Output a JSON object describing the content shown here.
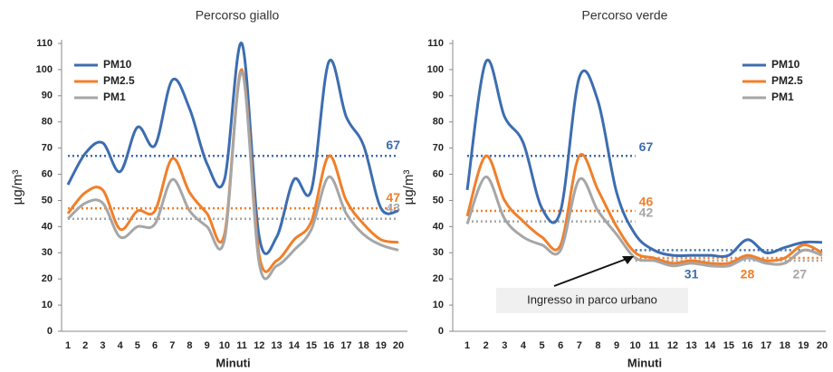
{
  "chart_data": [
    {
      "type": "line",
      "title": "Percorso giallo",
      "x_label": "Minuti",
      "y_label": "µg/m³",
      "categories": [
        "1",
        "2",
        "3",
        "4",
        "5",
        "6",
        "7",
        "8",
        "9",
        "10",
        "11",
        "12",
        "13",
        "14",
        "15",
        "16",
        "17",
        "18",
        "19",
        "20"
      ],
      "ylim": [
        0,
        110
      ],
      "yticks": [
        0,
        10,
        20,
        30,
        40,
        50,
        60,
        70,
        80,
        90,
        100,
        110
      ],
      "legend": "upper left",
      "series": [
        {
          "name": "PM10",
          "color": "#3c6db0",
          "values": [
            56,
            68,
            72,
            61,
            78,
            71,
            96,
            85,
            64,
            58,
            110,
            36,
            36,
            58,
            54,
            103,
            82,
            71,
            47,
            46
          ]
        },
        {
          "name": "PM2.5",
          "color": "#f07f2a",
          "values": [
            45,
            53,
            54,
            39,
            46,
            46,
            66,
            53,
            45,
            37,
            100,
            29,
            27,
            35,
            42,
            67,
            50,
            41,
            35,
            34
          ]
        },
        {
          "name": "PM1",
          "color": "#a6a6a6",
          "values": [
            43,
            49,
            49,
            36,
            40,
            41,
            58,
            46,
            40,
            35,
            99,
            26,
            25,
            31,
            39,
            59,
            45,
            37,
            33,
            31
          ]
        }
      ],
      "averages": [
        {
          "value": 67,
          "color": "#3c6db0",
          "x": [
            1,
            20
          ]
        },
        {
          "value": 47,
          "color": "#f07f2a",
          "x": [
            1,
            20
          ]
        },
        {
          "value": 43,
          "color": "#a6a6a6",
          "x": [
            1,
            20
          ]
        }
      ]
    },
    {
      "type": "line",
      "title": "Percorso verde",
      "x_label": "Minuti",
      "y_label": "µg/m³",
      "categories": [
        "1",
        "2",
        "3",
        "4",
        "5",
        "6",
        "7",
        "8",
        "9",
        "10",
        "11",
        "12",
        "13",
        "14",
        "15",
        "16",
        "17",
        "18",
        "19",
        "20"
      ],
      "ylim": [
        0,
        110
      ],
      "yticks": [
        0,
        10,
        20,
        30,
        40,
        50,
        60,
        70,
        80,
        90,
        100,
        110
      ],
      "legend": "upper right",
      "annotation": "Ingresso in parco urbano",
      "series": [
        {
          "name": "PM10",
          "color": "#3c6db0",
          "values": [
            54,
            103,
            82,
            72,
            47,
            46,
            97,
            88,
            53,
            37,
            31,
            29,
            29,
            29,
            29,
            35,
            30,
            32,
            34,
            34
          ]
        },
        {
          "name": "PM2.5",
          "color": "#f07f2a",
          "values": [
            44,
            67,
            50,
            42,
            36,
            33,
            67,
            54,
            40,
            30,
            28,
            26,
            27,
            26,
            26,
            29,
            27,
            28,
            33,
            30
          ]
        },
        {
          "name": "PM1",
          "color": "#a6a6a6",
          "values": [
            41,
            59,
            43,
            36,
            33,
            31,
            58,
            46,
            37,
            28,
            27,
            25,
            26,
            25,
            25,
            28,
            26,
            26,
            31,
            29
          ]
        }
      ],
      "averages": [
        {
          "value": 67,
          "color": "#3c6db0",
          "x": [
            1,
            10
          ]
        },
        {
          "value": 46,
          "color": "#f07f2a",
          "x": [
            1,
            10
          ]
        },
        {
          "value": 42,
          "color": "#a6a6a6",
          "x": [
            1,
            10
          ]
        },
        {
          "value": 31,
          "color": "#3c6db0",
          "x": [
            10,
            20
          ]
        },
        {
          "value": 28,
          "color": "#f07f2a",
          "x": [
            10,
            20
          ]
        },
        {
          "value": 27,
          "color": "#a6a6a6",
          "x": [
            10,
            20
          ]
        }
      ]
    }
  ]
}
